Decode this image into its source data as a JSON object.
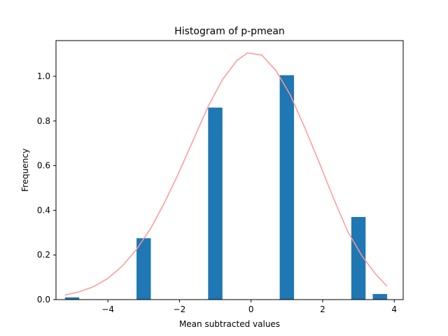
{
  "chart_data": {
    "type": "bar",
    "title": "Histogram of p-pmean",
    "xlabel": "Mean subtracted values",
    "ylabel": "Frequency",
    "xlim": [
      -5.45,
      4.25
    ],
    "ylim": [
      0,
      1.16
    ],
    "xticks": [
      -4,
      -2,
      0,
      2,
      4
    ],
    "xtick_labels": [
      "−4",
      "−2",
      "0",
      "2",
      "4"
    ],
    "yticks": [
      0.0,
      0.2,
      0.4,
      0.6,
      0.8,
      1.0
    ],
    "ytick_labels": [
      "0.0",
      "0.2",
      "0.4",
      "0.6",
      "0.8",
      "1.0"
    ],
    "grid": false,
    "bar_width": 0.4,
    "bars": [
      {
        "x": -5.0,
        "value": 0.01
      },
      {
        "x": -3.0,
        "value": 0.275
      },
      {
        "x": -1.0,
        "value": 0.86
      },
      {
        "x": 1.0,
        "value": 1.005
      },
      {
        "x": 3.0,
        "value": 0.37
      },
      {
        "x": 3.6,
        "value": 0.025
      }
    ],
    "bar_color": "#1f77b4",
    "curve_color": "#ff9896",
    "curve": {
      "x": [
        -5.2,
        -4.8,
        -4.4,
        -4.0,
        -3.6,
        -3.2,
        -2.8,
        -2.4,
        -2.0,
        -1.6,
        -1.2,
        -0.8,
        -0.4,
        -0.1,
        0.3,
        0.7,
        1.1,
        1.5,
        1.9,
        2.3,
        2.7,
        3.1,
        3.5,
        3.8
      ],
      "y": [
        0.02,
        0.035,
        0.058,
        0.095,
        0.15,
        0.225,
        0.32,
        0.44,
        0.575,
        0.72,
        0.865,
        0.985,
        1.07,
        1.105,
        1.095,
        1.025,
        0.915,
        0.77,
        0.615,
        0.455,
        0.305,
        0.195,
        0.11,
        0.06
      ]
    }
  }
}
